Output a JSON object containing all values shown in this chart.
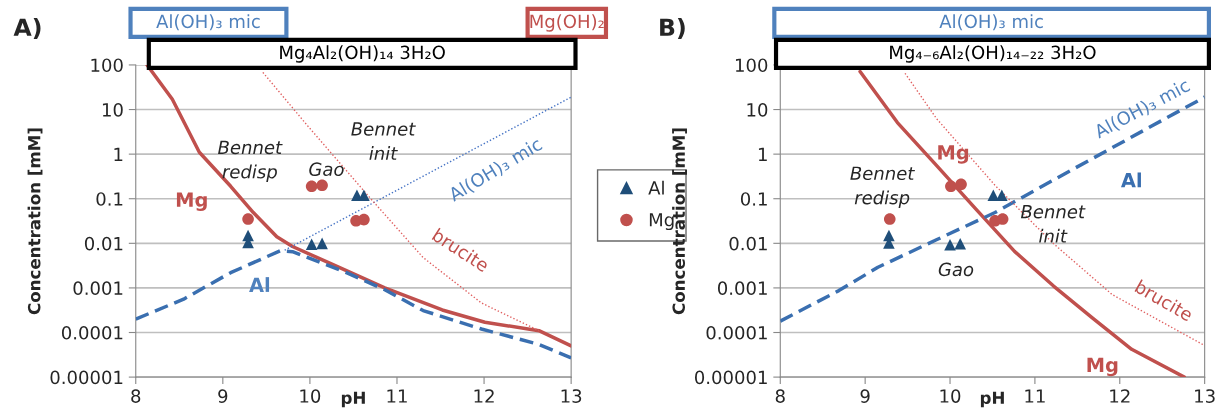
{
  "chart_data": [
    {
      "type": "line",
      "title": "A)",
      "xlabel": "pH",
      "ylabel": "Concentration [mM]",
      "log": "y",
      "xlim": [
        8,
        13
      ],
      "ylim": [
        1e-05,
        100
      ],
      "xticks": [
        8,
        9,
        10,
        11,
        12,
        13
      ],
      "yticks": [
        {
          "value": 1e-05,
          "label": "0.00001"
        },
        0.0001,
        0.001,
        0.01,
        0.1,
        1,
        10,
        100
      ],
      "grid": "y",
      "legend": "right",
      "series": [
        {
          "line_style": "solid",
          "color": "#c0504d",
          "x": [
            8.13,
            8.42,
            8.73,
            9.09,
            9.35,
            9.62,
            9.8,
            10.24,
            10.86,
            11.52,
            12.01,
            12.63,
            13
          ],
          "values": [
            100,
            17,
            1.1,
            0.19,
            0.049,
            0.014,
            0.0085,
            0.0035,
            0.001,
            0.00032,
            0.00017,
            0.00011,
            5e-05
          ]
        },
        {
          "line_style": "dashed",
          "color": "#3a6fb0",
          "x": [
            8,
            8.55,
            9.09,
            9.66,
            9.8,
            10.42,
            10.86,
            11.3,
            11.97,
            12.63,
            13
          ],
          "values": [
            0.0002,
            0.00056,
            0.0022,
            0.0068,
            0.0065,
            0.0022,
            0.00091,
            0.00031,
            0.00012,
            5.4e-05,
            2.7e-05
          ]
        },
        {
          "line_style": "dotted",
          "color": "#4472c4",
          "x": [
            9.71,
            13
          ],
          "values": [
            0.007,
            19
          ]
        },
        {
          "line_style": "dotted",
          "color": "#e06060",
          "x": [
            9.46,
            9.97,
            10.68,
            11.3,
            11.97,
            12.63
          ],
          "values": [
            68,
            4.4,
            0.11,
            0.0048,
            0.00046,
            0.00011
          ]
        },
        {
          "type": "scatter",
          "name": "Al",
          "marker": "triangle",
          "color": "#1f4e79",
          "x": [
            9.29,
            9.29,
            10.02,
            10.14,
            10.54,
            10.62
          ],
          "values": [
            0.015,
            0.0105,
            0.0095,
            0.01,
            0.12,
            0.12
          ]
        },
        {
          "type": "scatter",
          "name": "Mg",
          "marker": "circle",
          "color": "#c0504d",
          "x": [
            9.29,
            10.02,
            10.14,
            10.53,
            10.62
          ],
          "values": [
            0.035,
            0.19,
            0.2,
            0.032,
            0.034
          ]
        }
      ],
      "annotations": [
        "Bennet\nredisp",
        "Gao",
        "Bennet\ninit",
        {
          "text": "Mg",
          "x": 9.09,
          "y": 0.19
        },
        {
          "text": "Al",
          "x": 9.09,
          "y": 0.0022
        },
        {
          "text": "Al(OH)₃ mic",
          "x": 12.14,
          "y": 2.4
        },
        {
          "text": "brucite",
          "x": 11.72,
          "y": 0.0011
        },
        "Al(OH)₃ mic",
        "Mg(OH)₂",
        "Mg₄Al₂(OH)₁₄ 3H₂O"
      ]
    },
    {
      "type": "line",
      "title": "B)",
      "xlabel": "pH",
      "ylabel": "Concentration [mM]",
      "log": "y",
      "xlim": [
        8,
        13
      ],
      "ylim": [
        1e-05,
        100
      ],
      "xticks": [
        8,
        9,
        10,
        11,
        12,
        13
      ],
      "yticks": [
        {
          "value": 1e-05,
          "label": "0.00001"
        },
        0.0001,
        0.001,
        0.01,
        0.1,
        1,
        10,
        100
      ],
      "grid": "y",
      "series": [
        {
          "line_style": "solid",
          "color": "#c0504d",
          "x": [
            8.94,
            9.38,
            9.84,
            10.3,
            10.76,
            11.22,
            11.68,
            12.14,
            12.76
          ],
          "values": [
            71,
            5.1,
            0.56,
            0.06,
            0.0066,
            0.0011,
            0.00021,
            4.2e-05,
            1e-05
          ]
        },
        {
          "line_style": "dashed",
          "color": "#3a6fb0",
          "x": [
            8,
            8.69,
            9.15,
            9.84,
            10.53,
            11.45,
            12.37,
            13
          ],
          "values": [
            0.00018,
            0.00087,
            0.0029,
            0.012,
            0.049,
            0.46,
            4.2,
            19
          ]
        },
        {
          "line_style": "dotted",
          "color": "#e06060",
          "x": [
            9.47,
            9.84,
            10.53,
            11.22,
            11.91,
            13
          ],
          "values": [
            65,
            6.3,
            0.2,
            0.0098,
            0.00071,
            5.1e-05
          ]
        },
        {
          "type": "scatter",
          "marker": "triangle",
          "color": "#1f4e79",
          "x": [
            9.28,
            9.28,
            10.0,
            10.12,
            10.51,
            10.61
          ],
          "values": [
            0.015,
            0.0102,
            0.0093,
            0.0098,
            0.12,
            0.12
          ]
        },
        {
          "type": "scatter",
          "marker": "circle",
          "color": "#c0504d",
          "x": [
            9.29,
            10.01,
            10.13,
            10.53,
            10.62
          ],
          "values": [
            0.035,
            0.19,
            0.21,
            0.032,
            0.035
          ]
        }
      ],
      "annotations": [
        "Bennet\nredisp",
        "Gao",
        "Bennet\ninit",
        {
          "text": "Mg",
          "x": 9.84,
          "y": 0.56
        },
        {
          "text": "Al",
          "x": 12.37,
          "y": 4.2
        },
        {
          "text": "Al(OH)₃ mic",
          "x": 12.37,
          "y": 4.2
        },
        {
          "text": "brucite",
          "x": 12.51,
          "y": 0.000166
        },
        {
          "text": "Mg",
          "x": 11.68,
          "y": 0.00021
        },
        "Al(OH)₃ mic",
        "Mg₄₋₆Al₂(OH)₁₄₋₂₂ 3H₂O"
      ]
    }
  ]
}
